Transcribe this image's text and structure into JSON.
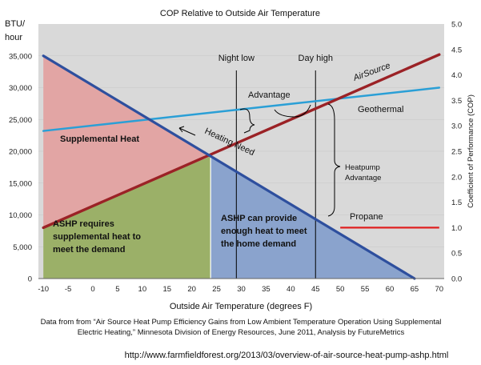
{
  "chart_data": {
    "type": "line",
    "title": "COP Relative to Outside Air Temperature",
    "xlabel": "Outside Air Temperature  (degrees F)",
    "ylabel_left": "BTU/ hour",
    "ylabel_right": "Coefficient of Performance (COP)",
    "x_ticks": [
      -10,
      -5,
      0,
      5,
      10,
      15,
      20,
      25,
      30,
      35,
      40,
      45,
      50,
      55,
      60,
      65,
      70
    ],
    "xlim": [
      -11,
      71
    ],
    "y_left_ticks": [
      0,
      5000,
      10000,
      15000,
      20000,
      25000,
      30000,
      35000
    ],
    "y_left_tick_labels": [
      "0",
      "5,000",
      "10,000",
      "15,000",
      "20,000",
      "25,000",
      "30,000",
      "35,000"
    ],
    "y_left_lim": [
      0,
      40000
    ],
    "y_right_ticks": [
      "0.0",
      "0.5",
      "1.0",
      "1.5",
      "2.0",
      "2.5",
      "3.0",
      "3.5",
      "4.0",
      "4.5",
      "5.0"
    ],
    "y_right_lim": [
      0,
      5
    ],
    "series": [
      {
        "name": "Heating Need",
        "axis": "left",
        "color": "#2e4f9e",
        "x": [
          -10,
          65
        ],
        "y": [
          35000,
          0
        ]
      },
      {
        "name": "AirSource",
        "axis": "right",
        "color": "#9b2226",
        "x": [
          -10,
          70
        ],
        "y": [
          1.0,
          4.4
        ]
      },
      {
        "name": "Geothermal",
        "axis": "right",
        "color": "#2a9fd6",
        "x": [
          -10,
          70
        ],
        "y": [
          2.9,
          3.75
        ]
      },
      {
        "name": "Propane",
        "axis": "right",
        "color": "#e02020",
        "x": [
          50,
          70
        ],
        "y": [
          1.0,
          1.0
        ]
      }
    ],
    "crossover_temp": 23.8,
    "vertical_markers": [
      {
        "label": "Night low",
        "x": 29
      },
      {
        "label": "Day high",
        "x": 45
      }
    ],
    "region_labels": {
      "supplemental_heat": "Supplemental Heat",
      "ashp_requires": [
        "ASHP requires",
        "supplemental heat to",
        "meet the demand"
      ],
      "ashp_can": [
        "ASHP can provide",
        "enough heat to meet",
        "the home demand"
      ]
    },
    "annotations": {
      "advantage": "Advantage",
      "heatpump_advantage": [
        "Heatpump",
        "Advantage"
      ],
      "heating_need": "Heating Need",
      "airsource": "AirSource",
      "geothermal": "Geothermal",
      "propane": "Propane"
    },
    "source_note": [
      "Data from from “Air Source Heat Pump Efficiency Gains from Low Ambient Temperature Operation Using Supplemental",
      "Electric Heating,” Minnesota Division of Energy Resources, June 2011, Analysis by FutureMetrics"
    ],
    "url": "http://www.farmfieldforest.org/2013/03/overview-of-air-source-heat-pump-ashp.html"
  },
  "colors": {
    "plot_bg": "#d9d9d9",
    "supplemental_fill": "#e2a5a4",
    "ashp_requires_fill": "#9bb068",
    "ashp_can_fill": "#8aa3cd"
  }
}
